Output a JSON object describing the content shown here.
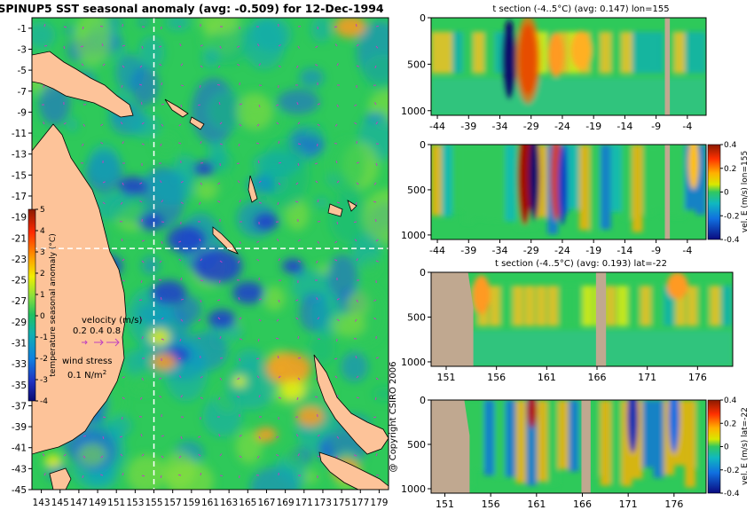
{
  "page": {
    "copyright": "@ Copyright CSIRO 2006"
  },
  "chart_data": [
    {
      "type": "heatmap",
      "title": "SPINUP5 SST seasonal anomaly (avg: -0.509) for 12-Dec-1994",
      "x_ticks": [
        143,
        145,
        147,
        149,
        151,
        153,
        155,
        157,
        159,
        161,
        163,
        165,
        167,
        169,
        171,
        173,
        175,
        177,
        179
      ],
      "x_tick_labels": [
        "143",
        "145",
        "147",
        "149",
        "151",
        "153",
        "155",
        "157",
        "159",
        "161",
        "163",
        "165",
        "167",
        "169",
        "171",
        "173",
        "175",
        "177",
        "179"
      ],
      "y_ticks": [
        -1,
        -3,
        -5,
        -7,
        -9,
        -11,
        -13,
        -15,
        -17,
        -19,
        -21,
        -23,
        -25,
        -27,
        -29,
        -31,
        -33,
        -35,
        -37,
        -39,
        -41,
        -43,
        -45
      ],
      "y_tick_labels": [
        "-1",
        "-3",
        "-5",
        "-7",
        "-9",
        "-11",
        "-13",
        "-15",
        "-17",
        "-19",
        "-21",
        "-23",
        "-25",
        "-27",
        "-29",
        "-31",
        "-33",
        "-35",
        "-37",
        "-39",
        "-41",
        "-43",
        "-45"
      ],
      "xlim": [
        142,
        180
      ],
      "ylim": [
        -45,
        0
      ],
      "section_lines": {
        "lon": 155,
        "lat": -22
      },
      "colorbar": {
        "label": "temperature seasonal anomaly (°C)",
        "ticks": [
          "5",
          "4",
          "3",
          "2",
          "1",
          "0",
          "-1",
          "-2",
          "-3",
          "-4"
        ],
        "range": [
          -4,
          5
        ]
      },
      "velocity_legend": {
        "title": "velocity (m/s)",
        "values": "0.2 0.4 0.8"
      },
      "wind_legend": {
        "title": "wind stress",
        "value": "0.1 N/m",
        "superscript": "2"
      },
      "colors": {
        "land": "#fdc399",
        "mean_ocean": "#2ec95a",
        "warm": "#ff9933",
        "cold": "#1f3ccc"
      }
    },
    {
      "type": "heatmap",
      "title": "t section (-4..5°C) (avg: 0.147) lon=155",
      "x_ticks": [
        -44,
        -39,
        -34,
        -29,
        -24,
        -19,
        -14,
        -9,
        -4
      ],
      "x_tick_labels": [
        "-44",
        "-39",
        "-34",
        "-29",
        "-24",
        "-19",
        "-14",
        "-9",
        "-4"
      ],
      "y_ticks": [
        0,
        500,
        1000
      ],
      "y_tick_labels": [
        "0",
        "500",
        "1000"
      ],
      "xlim": [
        -45,
        -1
      ],
      "ylim": [
        1050,
        0
      ]
    },
    {
      "type": "heatmap",
      "title": "",
      "x_ticks": [
        -44,
        -39,
        -34,
        -29,
        -24,
        -19,
        -14,
        -9,
        -4
      ],
      "x_tick_labels": [
        "-44",
        "-39",
        "-34",
        "-29",
        "-24",
        "-19",
        "-14",
        "-9",
        "-4"
      ],
      "y_ticks": [
        0,
        500,
        1000
      ],
      "y_tick_labels": [
        "0",
        "500",
        "1000"
      ],
      "xlim": [
        -45,
        -1
      ],
      "ylim": [
        1050,
        0
      ],
      "colorbar": {
        "label": "vel. E (m/s) lon=155",
        "ticks": [
          "0.4",
          "0.2",
          "0",
          "-0.2",
          "-0.4"
        ],
        "range": [
          -0.4,
          0.4
        ]
      }
    },
    {
      "type": "heatmap",
      "title": "t section (-4..5°C) (avg: 0.193) lat=-22",
      "x_ticks": [
        151,
        156,
        161,
        166,
        171,
        176
      ],
      "x_tick_labels": [
        "151",
        "156",
        "161",
        "166",
        "171",
        "176"
      ],
      "y_ticks": [
        0,
        500,
        1000
      ],
      "y_tick_labels": [
        "0",
        "500",
        "1000"
      ],
      "xlim": [
        149.5,
        179.5
      ],
      "ylim": [
        1050,
        0
      ]
    },
    {
      "type": "heatmap",
      "title": "",
      "x_ticks": [
        151,
        156,
        161,
        166,
        171,
        176
      ],
      "x_tick_labels": [
        "151",
        "156",
        "161",
        "166",
        "171",
        "176"
      ],
      "y_ticks": [
        0,
        500,
        1000
      ],
      "y_tick_labels": [
        "0",
        "500",
        "1000"
      ],
      "xlim": [
        149.5,
        179.5
      ],
      "ylim": [
        1050,
        0
      ],
      "colorbar": {
        "label": "vel. E (m/s) lat=-22",
        "ticks": [
          "0.4",
          "0.2",
          "0",
          "-0.2",
          "-0.4"
        ],
        "range": [
          -0.4,
          0.4
        ]
      }
    }
  ]
}
